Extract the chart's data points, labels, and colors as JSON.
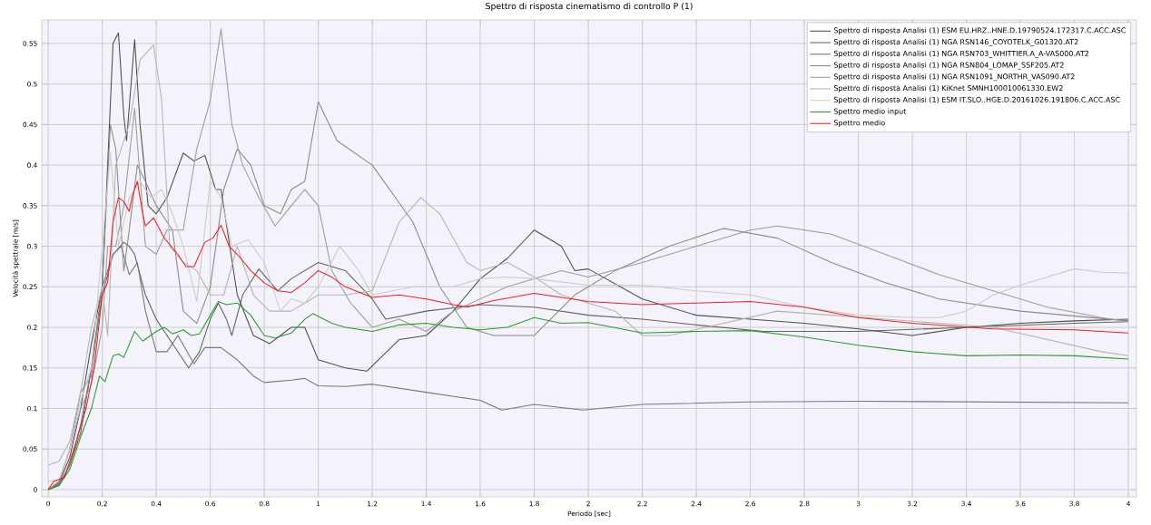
{
  "chart_data": {
    "type": "line",
    "title": "Spettro di risposta cinematismo di controllo P (1)",
    "xlabel": "Periodo [sec]",
    "ylabel": "Velocità spettrale [m/s]",
    "xlim": [
      -0.024,
      4.03
    ],
    "ylim": [
      -0.009,
      0.579
    ],
    "xticks": [
      0,
      0.2,
      0.4,
      0.6,
      0.8,
      1,
      1.2,
      1.4,
      1.6,
      1.8,
      2,
      2.2,
      2.4,
      2.6,
      2.8,
      3,
      3.2,
      3.4,
      3.6,
      3.8,
      4
    ],
    "yticks": [
      0,
      0.05,
      0.1,
      0.15,
      0.2,
      0.25,
      0.3,
      0.35,
      0.4,
      0.45,
      0.5,
      0.55
    ],
    "grid": true,
    "legend": "top right",
    "series": [
      {
        "name": "Spettro di risposta Analisi (1) ESM EU.HRZ..HNE.D.19790524.172317.C.ACC.ASC",
        "color": "#4f4f4f",
        "x": [
          0,
          0.04,
          0.08,
          0.12,
          0.16,
          0.2,
          0.22,
          0.24,
          0.26,
          0.28,
          0.29,
          0.32,
          0.34,
          0.37,
          0.4,
          0.44,
          0.5,
          0.54,
          0.58,
          0.62,
          0.64,
          0.7,
          0.76,
          0.82,
          0.9,
          0.95,
          1.0,
          1.1,
          1.18,
          1.3,
          1.4,
          1.5,
          1.6,
          1.7,
          1.8,
          1.9,
          1.95,
          2.0,
          2.2,
          2.4,
          2.6,
          2.8,
          3.0,
          3.2,
          3.4,
          3.6,
          3.8,
          4.0
        ],
        "values": [
          0,
          0.008,
          0.04,
          0.1,
          0.18,
          0.25,
          0.4,
          0.55,
          0.563,
          0.46,
          0.43,
          0.555,
          0.45,
          0.35,
          0.34,
          0.36,
          0.415,
          0.405,
          0.412,
          0.37,
          0.37,
          0.24,
          0.19,
          0.18,
          0.2,
          0.2,
          0.16,
          0.15,
          0.146,
          0.185,
          0.19,
          0.22,
          0.26,
          0.285,
          0.32,
          0.3,
          0.27,
          0.272,
          0.235,
          0.215,
          0.21,
          0.205,
          0.198,
          0.19,
          0.2,
          0.205,
          0.208,
          0.21
        ]
      },
      {
        "name": "Spettro di risposta Analisi (1) NGA RSN146_COYOTELK_G01320.AT2",
        "color": "#636363",
        "x": [
          0,
          0.04,
          0.08,
          0.12,
          0.16,
          0.2,
          0.24,
          0.28,
          0.3,
          0.32,
          0.36,
          0.4,
          0.46,
          0.52,
          0.56,
          0.6,
          0.63,
          0.66,
          0.68,
          0.72,
          0.78,
          0.85,
          0.9,
          1.0,
          1.1,
          1.2,
          1.25,
          1.4,
          1.6,
          1.8,
          2.0,
          2.2,
          2.4,
          2.65,
          3.0,
          3.4,
          3.8,
          4.0
        ],
        "values": [
          0,
          0.006,
          0.03,
          0.07,
          0.15,
          0.24,
          0.29,
          0.305,
          0.3,
          0.29,
          0.24,
          0.21,
          0.18,
          0.15,
          0.17,
          0.21,
          0.23,
          0.21,
          0.19,
          0.24,
          0.272,
          0.245,
          0.26,
          0.28,
          0.27,
          0.235,
          0.21,
          0.22,
          0.228,
          0.225,
          0.215,
          0.21,
          0.203,
          0.195,
          0.195,
          0.2,
          0.205,
          0.207
        ]
      },
      {
        "name": "Spettro di risposta Analisi (1) NGA RSN703_WHITTIER.A_A-VAS000.AT2",
        "color": "#777777",
        "x": [
          0,
          0.04,
          0.08,
          0.12,
          0.16,
          0.2,
          0.24,
          0.27,
          0.3,
          0.33,
          0.36,
          0.4,
          0.44,
          0.48,
          0.54,
          0.58,
          0.64,
          0.7,
          0.76,
          0.8,
          0.9,
          0.95,
          1.0,
          1.1,
          1.2,
          1.4,
          1.6,
          1.68,
          1.8,
          1.98,
          2.2,
          2.6,
          3.0,
          3.5,
          4.0
        ],
        "values": [
          0,
          0.005,
          0.03,
          0.08,
          0.15,
          0.25,
          0.29,
          0.3,
          0.265,
          0.28,
          0.22,
          0.17,
          0.17,
          0.19,
          0.155,
          0.175,
          0.175,
          0.16,
          0.14,
          0.132,
          0.135,
          0.137,
          0.128,
          0.127,
          0.13,
          0.12,
          0.11,
          0.098,
          0.105,
          0.098,
          0.105,
          0.108,
          0.109,
          0.108,
          0.107
        ]
      },
      {
        "name": "Spettro di risposta Analisi (1) NGA RSN804_LOMAP_SSF205.AT2",
        "color": "#8a8a8a",
        "x": [
          0,
          0.04,
          0.08,
          0.12,
          0.16,
          0.2,
          0.23,
          0.25,
          0.28,
          0.3,
          0.33,
          0.36,
          0.4,
          0.46,
          0.5,
          0.55,
          0.6,
          0.65,
          0.7,
          0.75,
          0.8,
          0.86,
          0.9,
          0.95,
          1.0,
          1.07,
          1.2,
          1.35,
          1.45,
          1.55,
          1.65,
          1.8,
          1.95,
          2.1,
          2.3,
          2.5,
          2.7,
          2.9,
          3.1,
          3.3,
          3.6,
          4.0
        ],
        "values": [
          0,
          0.01,
          0.05,
          0.12,
          0.14,
          0.25,
          0.45,
          0.42,
          0.27,
          0.32,
          0.4,
          0.38,
          0.35,
          0.32,
          0.22,
          0.205,
          0.25,
          0.37,
          0.42,
          0.4,
          0.35,
          0.34,
          0.37,
          0.38,
          0.478,
          0.43,
          0.4,
          0.33,
          0.25,
          0.2,
          0.19,
          0.19,
          0.24,
          0.27,
          0.3,
          0.322,
          0.31,
          0.28,
          0.255,
          0.235,
          0.22,
          0.208
        ]
      },
      {
        "name": "Spettro di risposta Analisi (1) NGA RSN1091_NORTHR_VAS090.AT2",
        "color": "#9c9c9c",
        "x": [
          0,
          0.04,
          0.08,
          0.12,
          0.16,
          0.2,
          0.22,
          0.25,
          0.28,
          0.32,
          0.36,
          0.4,
          0.44,
          0.5,
          0.55,
          0.6,
          0.64,
          0.68,
          0.72,
          0.78,
          0.84,
          0.9,
          0.95,
          1.0,
          1.05,
          1.12,
          1.2,
          1.3,
          1.4,
          1.5,
          1.7,
          1.9,
          2.0,
          2.2,
          2.4,
          2.6,
          2.7,
          2.9,
          3.1,
          3.3,
          3.5,
          3.7,
          3.9,
          4.0
        ],
        "values": [
          0,
          0.01,
          0.05,
          0.1,
          0.13,
          0.2,
          0.3,
          0.3,
          0.35,
          0.47,
          0.3,
          0.29,
          0.32,
          0.32,
          0.42,
          0.48,
          0.568,
          0.45,
          0.4,
          0.36,
          0.325,
          0.35,
          0.37,
          0.35,
          0.27,
          0.23,
          0.2,
          0.21,
          0.195,
          0.22,
          0.25,
          0.27,
          0.262,
          0.28,
          0.3,
          0.32,
          0.325,
          0.315,
          0.29,
          0.265,
          0.245,
          0.225,
          0.212,
          0.207
        ]
      },
      {
        "name": "Spettro di risposta Analisi (1) KiKnet SMNH100010061330.EW2",
        "color": "#b4b4b4",
        "x": [
          0,
          0.04,
          0.08,
          0.12,
          0.16,
          0.2,
          0.22,
          0.25,
          0.3,
          0.34,
          0.39,
          0.42,
          0.45,
          0.5,
          0.55,
          0.6,
          0.65,
          0.7,
          0.76,
          0.82,
          0.9,
          0.95,
          1.0,
          1.1,
          1.2,
          1.3,
          1.38,
          1.45,
          1.55,
          1.6,
          1.7,
          1.8,
          1.9,
          2.0,
          2.1,
          2.2,
          2.3,
          2.5,
          2.7,
          2.9,
          3.1,
          3.3,
          3.5,
          3.7,
          3.9,
          4.0
        ],
        "values": [
          0.03,
          0.035,
          0.06,
          0.12,
          0.2,
          0.25,
          0.19,
          0.4,
          0.45,
          0.53,
          0.548,
          0.48,
          0.3,
          0.28,
          0.27,
          0.24,
          0.24,
          0.3,
          0.24,
          0.22,
          0.22,
          0.23,
          0.24,
          0.24,
          0.245,
          0.33,
          0.36,
          0.34,
          0.28,
          0.27,
          0.28,
          0.262,
          0.24,
          0.23,
          0.22,
          0.19,
          0.19,
          0.205,
          0.22,
          0.215,
          0.21,
          0.205,
          0.2,
          0.185,
          0.17,
          0.165
        ]
      },
      {
        "name": "Spettro di risposta Analisi (1) ESM IT.SLO..HGE.D.20161026.191806.C.ACC.ASC",
        "color": "#cbcbcb",
        "x": [
          0,
          0.04,
          0.08,
          0.12,
          0.16,
          0.2,
          0.23,
          0.26,
          0.3,
          0.34,
          0.38,
          0.42,
          0.46,
          0.5,
          0.55,
          0.6,
          0.64,
          0.68,
          0.74,
          0.8,
          0.86,
          0.9,
          0.95,
          1.0,
          1.08,
          1.15,
          1.2,
          1.35,
          1.5,
          1.6,
          1.7,
          1.8,
          2.0,
          2.2,
          2.4,
          2.6,
          2.8,
          3.0,
          3.2,
          3.3,
          3.4,
          3.5,
          3.6,
          3.7,
          3.8,
          3.9,
          4.0
        ],
        "values": [
          0.01,
          0.012,
          0.05,
          0.11,
          0.15,
          0.3,
          0.415,
          0.3,
          0.36,
          0.38,
          0.36,
          0.37,
          0.34,
          0.3,
          0.232,
          0.38,
          0.36,
          0.3,
          0.308,
          0.28,
          0.22,
          0.235,
          0.23,
          0.25,
          0.3,
          0.27,
          0.24,
          0.25,
          0.25,
          0.26,
          0.262,
          0.26,
          0.252,
          0.252,
          0.245,
          0.24,
          0.225,
          0.215,
          0.212,
          0.212,
          0.22,
          0.24,
          0.252,
          0.262,
          0.272,
          0.268,
          0.267
        ]
      },
      {
        "name": "Spettro medio input",
        "color": "#2e9a2e",
        "x": [
          0,
          0.04,
          0.08,
          0.12,
          0.16,
          0.19,
          0.21,
          0.24,
          0.26,
          0.28,
          0.32,
          0.35,
          0.4,
          0.43,
          0.46,
          0.5,
          0.53,
          0.56,
          0.6,
          0.63,
          0.66,
          0.7,
          0.75,
          0.8,
          0.84,
          0.9,
          0.95,
          0.98,
          1.05,
          1.1,
          1.2,
          1.3,
          1.4,
          1.5,
          1.6,
          1.7,
          1.8,
          1.9,
          2.0,
          2.2,
          2.4,
          2.6,
          2.8,
          3.0,
          3.2,
          3.4,
          3.6,
          3.8,
          4.0
        ],
        "values": [
          0,
          0.005,
          0.025,
          0.065,
          0.1,
          0.14,
          0.133,
          0.165,
          0.167,
          0.163,
          0.195,
          0.183,
          0.195,
          0.2,
          0.192,
          0.197,
          0.19,
          0.192,
          0.215,
          0.232,
          0.228,
          0.23,
          0.215,
          0.19,
          0.187,
          0.193,
          0.21,
          0.217,
          0.205,
          0.2,
          0.195,
          0.203,
          0.205,
          0.2,
          0.197,
          0.2,
          0.212,
          0.205,
          0.206,
          0.193,
          0.195,
          0.196,
          0.188,
          0.178,
          0.17,
          0.165,
          0.166,
          0.165,
          0.161
        ]
      },
      {
        "name": "Spettro medio",
        "color": "#e82323",
        "x": [
          0,
          0.02,
          0.06,
          0.1,
          0.14,
          0.17,
          0.2,
          0.22,
          0.24,
          0.26,
          0.28,
          0.3,
          0.31,
          0.33,
          0.35,
          0.36,
          0.39,
          0.43,
          0.48,
          0.51,
          0.54,
          0.58,
          0.61,
          0.64,
          0.67,
          0.7,
          0.75,
          0.8,
          0.85,
          0.9,
          0.95,
          1.0,
          1.05,
          1.1,
          1.2,
          1.3,
          1.4,
          1.5,
          1.55,
          1.65,
          1.8,
          2.0,
          2.2,
          2.4,
          2.6,
          2.8,
          3.0,
          3.2,
          3.5,
          3.8,
          4.0
        ],
        "values": [
          0,
          0.01,
          0.015,
          0.055,
          0.1,
          0.15,
          0.24,
          0.255,
          0.33,
          0.36,
          0.355,
          0.343,
          0.36,
          0.38,
          0.34,
          0.325,
          0.335,
          0.31,
          0.29,
          0.275,
          0.275,
          0.305,
          0.31,
          0.326,
          0.3,
          0.29,
          0.27,
          0.255,
          0.245,
          0.243,
          0.255,
          0.27,
          0.262,
          0.25,
          0.237,
          0.24,
          0.235,
          0.228,
          0.225,
          0.233,
          0.242,
          0.232,
          0.228,
          0.23,
          0.232,
          0.225,
          0.212,
          0.205,
          0.198,
          0.197,
          0.193
        ]
      }
    ]
  }
}
